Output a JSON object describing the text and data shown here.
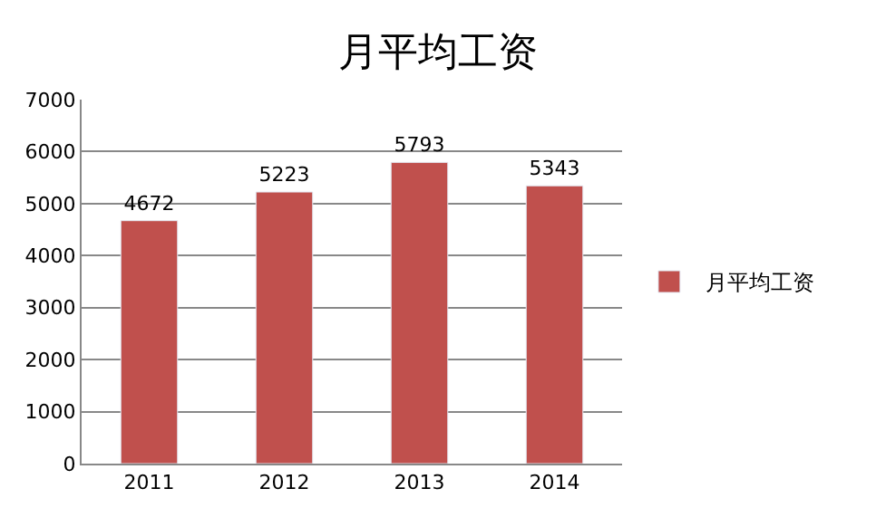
{
  "chart_data": {
    "type": "bar",
    "title": "月平均工资",
    "categories": [
      "2011",
      "2012",
      "2013",
      "2014"
    ],
    "series": [
      {
        "name": "月平均工资",
        "color": "#c0504d",
        "values": [
          4672,
          5223,
          5793,
          5343
        ]
      }
    ],
    "ylim": [
      0,
      7000
    ],
    "yticks": [
      0,
      1000,
      2000,
      3000,
      4000,
      5000,
      6000,
      7000
    ],
    "grid": "y",
    "legend": "right",
    "data_labels": true
  }
}
